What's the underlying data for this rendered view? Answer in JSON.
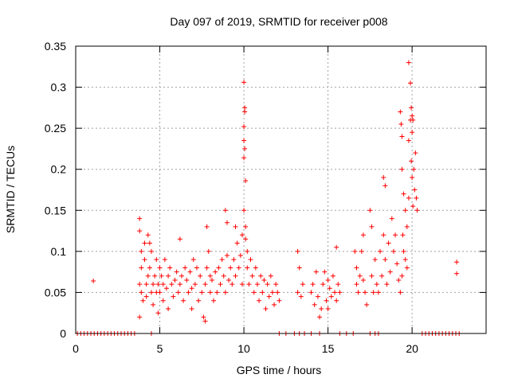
{
  "colors": {
    "series": "#ff0000",
    "grid": "#a0a0a0",
    "axis": "#000000",
    "background": "#ffffff"
  },
  "chart_data": {
    "type": "scatter",
    "title": "Day 097 of 2019, SRMTID for receiver p008",
    "xlabel": "GPS time / hours",
    "ylabel": "SRMTID / TECUs",
    "xlim": [
      0,
      24.4
    ],
    "ylim": [
      0,
      0.35
    ],
    "xticks": [
      0,
      5,
      10,
      15,
      20
    ],
    "xtick_labels": [
      "0",
      "5",
      "10",
      "15",
      "20"
    ],
    "yticks": [
      0,
      0.05,
      0.1,
      0.15,
      0.2,
      0.25,
      0.3,
      0.35
    ],
    "ytick_labels": [
      "0",
      "0.05",
      "0.1",
      "0.15",
      "0.2",
      "0.25",
      "0.3",
      "0.35"
    ],
    "grid": true,
    "marker": "+",
    "series": [
      {
        "name": "SRMTID",
        "points": [
          [
            0.1,
            0
          ],
          [
            0.3,
            0
          ],
          [
            0.5,
            0
          ],
          [
            0.7,
            0
          ],
          [
            0.9,
            0
          ],
          [
            1.1,
            0
          ],
          [
            1.3,
            0
          ],
          [
            1.5,
            0
          ],
          [
            1.7,
            0
          ],
          [
            1.9,
            0
          ],
          [
            2.1,
            0
          ],
          [
            2.3,
            0
          ],
          [
            2.5,
            0
          ],
          [
            2.7,
            0
          ],
          [
            2.9,
            0
          ],
          [
            3.1,
            0
          ],
          [
            3.3,
            0
          ],
          [
            3.5,
            0
          ],
          [
            4.5,
            0
          ],
          [
            1.05,
            0.064
          ],
          [
            12.1,
            0
          ],
          [
            12.5,
            0
          ],
          [
            13.0,
            0
          ],
          [
            13.3,
            0
          ],
          [
            13.6,
            0
          ],
          [
            14.0,
            0
          ],
          [
            14.5,
            0
          ],
          [
            15.7,
            0
          ],
          [
            16.1,
            0
          ],
          [
            16.5,
            0
          ],
          [
            17.5,
            0
          ],
          [
            17.8,
            0
          ],
          [
            18.0,
            0
          ],
          [
            20.6,
            0
          ],
          [
            20.8,
            0
          ],
          [
            21.0,
            0
          ],
          [
            21.2,
            0
          ],
          [
            21.4,
            0
          ],
          [
            21.6,
            0
          ],
          [
            21.8,
            0
          ],
          [
            22.0,
            0
          ],
          [
            22.2,
            0
          ],
          [
            22.4,
            0
          ],
          [
            22.6,
            0
          ],
          [
            22.8,
            0
          ],
          [
            3.8,
            0.14
          ],
          [
            3.8,
            0.125
          ],
          [
            3.9,
            0.1
          ],
          [
            3.9,
            0.08
          ],
          [
            3.8,
            0.06
          ],
          [
            3.9,
            0.05
          ],
          [
            4.0,
            0.04
          ],
          [
            3.8,
            0.02
          ],
          [
            4.1,
            0.11
          ],
          [
            4.1,
            0.09
          ],
          [
            4.2,
            0.06
          ],
          [
            4.2,
            0.045
          ],
          [
            4.3,
            0.12
          ],
          [
            4.3,
            0.07
          ],
          [
            4.4,
            0.11
          ],
          [
            4.4,
            0.08
          ],
          [
            4.5,
            0.1
          ],
          [
            4.5,
            0.05
          ],
          [
            4.6,
            0.06
          ],
          [
            4.6,
            0.035
          ],
          [
            4.7,
            0.07
          ],
          [
            4.8,
            0.09
          ],
          [
            4.8,
            0.05
          ],
          [
            4.9,
            0.06
          ],
          [
            4.9,
            0.025
          ],
          [
            5.0,
            0.08
          ],
          [
            5.0,
            0.05
          ],
          [
            5.1,
            0.07
          ],
          [
            5.2,
            0.06
          ],
          [
            5.2,
            0.04
          ],
          [
            5.3,
            0.09
          ],
          [
            5.4,
            0.055
          ],
          [
            5.5,
            0.07
          ],
          [
            5.5,
            0.03
          ],
          [
            5.6,
            0.08
          ],
          [
            5.7,
            0.06
          ],
          [
            5.8,
            0.045
          ],
          [
            5.9,
            0.065
          ],
          [
            6.0,
            0.075
          ],
          [
            6.1,
            0.05
          ],
          [
            6.2,
            0.115
          ],
          [
            6.2,
            0.06
          ],
          [
            6.3,
            0.07
          ],
          [
            6.4,
            0.04
          ],
          [
            6.5,
            0.08
          ],
          [
            6.6,
            0.065
          ],
          [
            6.7,
            0.05
          ],
          [
            6.8,
            0.075
          ],
          [
            6.9,
            0.055
          ],
          [
            6.9,
            0.03
          ],
          [
            7.0,
            0.09
          ],
          [
            7.1,
            0.06
          ],
          [
            7.2,
            0.08
          ],
          [
            7.3,
            0.04
          ],
          [
            7.4,
            0.07
          ],
          [
            7.5,
            0.05
          ],
          [
            7.6,
            0.02
          ],
          [
            7.7,
            0.015
          ],
          [
            7.7,
            0.06
          ],
          [
            7.8,
            0.13
          ],
          [
            7.8,
            0.08
          ],
          [
            7.9,
            0.1
          ],
          [
            8.0,
            0.07
          ],
          [
            8.0,
            0.05
          ],
          [
            8.1,
            0.065
          ],
          [
            8.2,
            0.04
          ],
          [
            8.3,
            0.075
          ],
          [
            8.4,
            0.05
          ],
          [
            8.5,
            0.08
          ],
          [
            8.6,
            0.06
          ],
          [
            8.7,
            0.09
          ],
          [
            8.8,
            0.07
          ],
          [
            8.9,
            0.15
          ],
          [
            8.9,
            0.05
          ],
          [
            9.0,
            0.135
          ],
          [
            9.0,
            0.095
          ],
          [
            9.1,
            0.065
          ],
          [
            9.2,
            0.08
          ],
          [
            9.3,
            0.06
          ],
          [
            9.4,
            0.09
          ],
          [
            9.5,
            0.13
          ],
          [
            9.5,
            0.07
          ],
          [
            9.6,
            0.11
          ],
          [
            9.7,
            0.08
          ],
          [
            9.8,
            0.095
          ],
          [
            9.9,
            0.12
          ],
          [
            9.9,
            0.06
          ],
          [
            10.0,
            0.306
          ],
          [
            10.05,
            0.275
          ],
          [
            10.05,
            0.27
          ],
          [
            10.0,
            0.252
          ],
          [
            10.0,
            0.235
          ],
          [
            10.05,
            0.225
          ],
          [
            10.0,
            0.214
          ],
          [
            10.1,
            0.186
          ],
          [
            10.0,
            0.15
          ],
          [
            10.1,
            0.13
          ],
          [
            10.1,
            0.115
          ],
          [
            10.2,
            0.1
          ],
          [
            10.2,
            0.08
          ],
          [
            10.3,
            0.06
          ],
          [
            10.4,
            0.09
          ],
          [
            10.5,
            0.07
          ],
          [
            10.6,
            0.05
          ],
          [
            10.7,
            0.08
          ],
          [
            10.8,
            0.06
          ],
          [
            10.9,
            0.04
          ],
          [
            11.0,
            0.07
          ],
          [
            11.1,
            0.05
          ],
          [
            11.2,
            0.065
          ],
          [
            11.3,
            0.03
          ],
          [
            11.4,
            0.06
          ],
          [
            11.5,
            0.045
          ],
          [
            11.6,
            0.07
          ],
          [
            11.7,
            0.05
          ],
          [
            11.8,
            0.035
          ],
          [
            11.9,
            0.06
          ],
          [
            12.0,
            0.05
          ],
          [
            12.1,
            0.04
          ],
          [
            13.2,
            0.1
          ],
          [
            13.3,
            0.08
          ],
          [
            13.2,
            0.05
          ],
          [
            13.4,
            0.045
          ],
          [
            13.5,
            0.06
          ],
          [
            14.0,
            0.05
          ],
          [
            14.1,
            0.06
          ],
          [
            14.2,
            0.035
          ],
          [
            14.3,
            0.075
          ],
          [
            14.4,
            0.045
          ],
          [
            14.5,
            0.02
          ],
          [
            14.6,
            0.03
          ],
          [
            14.7,
            0.06
          ],
          [
            14.8,
            0.075
          ],
          [
            14.9,
            0.04
          ],
          [
            15.0,
            0.065
          ],
          [
            15.0,
            0.03
          ],
          [
            15.1,
            0.055
          ],
          [
            15.2,
            0.045
          ],
          [
            15.3,
            0.07
          ],
          [
            15.4,
            0.05
          ],
          [
            15.5,
            0.105
          ],
          [
            15.5,
            0.04
          ],
          [
            15.6,
            0.06
          ],
          [
            15.7,
            0.05
          ],
          [
            16.6,
            0.1
          ],
          [
            16.7,
            0.08
          ],
          [
            16.7,
            0.06
          ],
          [
            16.8,
            0.05
          ],
          [
            16.9,
            0.07
          ],
          [
            17.0,
            0.1
          ],
          [
            17.1,
            0.12
          ],
          [
            17.1,
            0.065
          ],
          [
            17.2,
            0.05
          ],
          [
            17.3,
            0.035
          ],
          [
            17.5,
            0.15
          ],
          [
            17.6,
            0.13
          ],
          [
            17.6,
            0.07
          ],
          [
            17.7,
            0.05
          ],
          [
            17.8,
            0.09
          ],
          [
            17.9,
            0.06
          ],
          [
            18.0,
            0.05
          ],
          [
            18.1,
            0.1
          ],
          [
            18.2,
            0.07
          ],
          [
            18.3,
            0.12
          ],
          [
            18.3,
            0.19
          ],
          [
            18.4,
            0.18
          ],
          [
            18.4,
            0.09
          ],
          [
            18.5,
            0.06
          ],
          [
            18.6,
            0.11
          ],
          [
            18.7,
            0.075
          ],
          [
            18.8,
            0.14
          ],
          [
            18.9,
            0.1
          ],
          [
            19.0,
            0.12
          ],
          [
            19.1,
            0.085
          ],
          [
            19.2,
            0.065
          ],
          [
            19.3,
            0.05
          ],
          [
            19.4,
            0.07
          ],
          [
            19.4,
            0.2
          ],
          [
            19.5,
            0.17
          ],
          [
            19.6,
            0.15
          ],
          [
            19.7,
            0.13
          ],
          [
            19.8,
            0.165
          ],
          [
            19.8,
            0.235
          ],
          [
            19.9,
            0.26
          ],
          [
            19.95,
            0.21
          ],
          [
            20.0,
            0.245
          ],
          [
            20.0,
            0.19
          ],
          [
            20.05,
            0.155
          ],
          [
            20.1,
            0.2
          ],
          [
            20.15,
            0.175
          ],
          [
            20.2,
            0.22
          ],
          [
            20.25,
            0.165
          ],
          [
            20.3,
            0.15
          ],
          [
            19.3,
            0.27
          ],
          [
            19.35,
            0.255
          ],
          [
            19.4,
            0.24
          ],
          [
            19.45,
            0.12
          ],
          [
            19.5,
            0.1
          ],
          [
            19.6,
            0.09
          ],
          [
            19.7,
            0.08
          ],
          [
            19.8,
            0.33
          ],
          [
            19.9,
            0.305
          ],
          [
            19.95,
            0.275
          ],
          [
            20.0,
            0.265
          ],
          [
            20.05,
            0.26
          ],
          [
            22.65,
            0.087
          ],
          [
            22.65,
            0.073
          ]
        ]
      }
    ]
  }
}
